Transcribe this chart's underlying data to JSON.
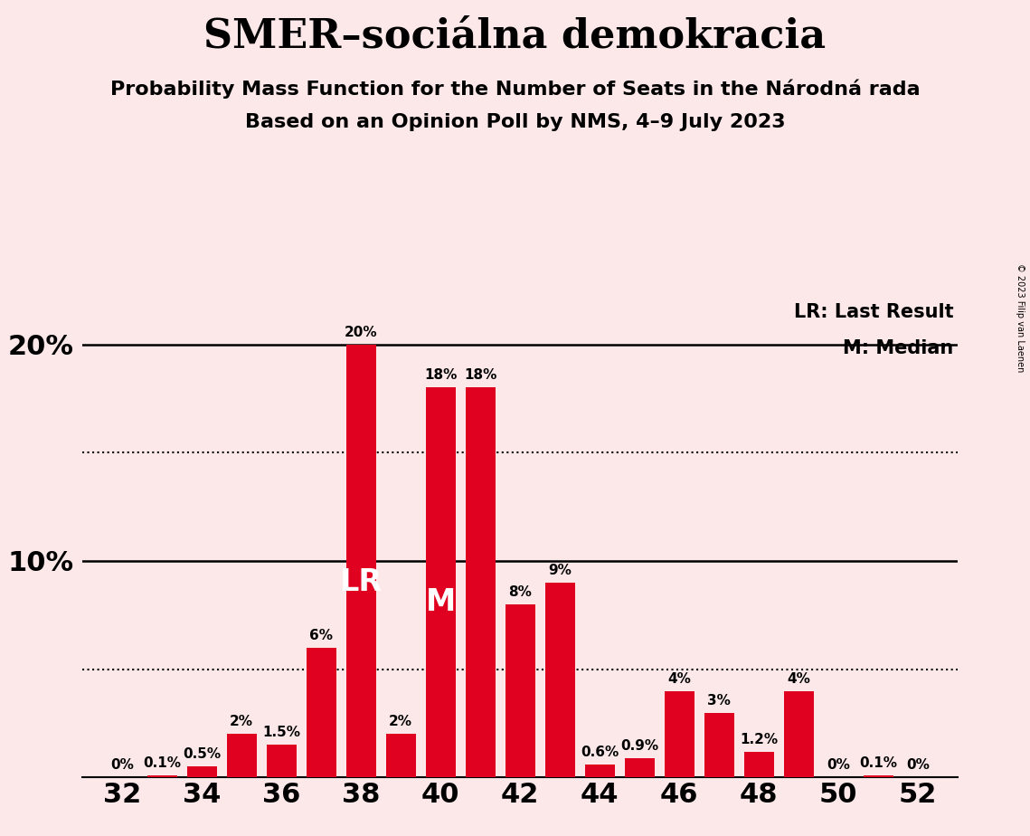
{
  "title": "SMER–sociálna demokracia",
  "subtitle1": "Probability Mass Function for the Number of Seats in the Národná rada",
  "subtitle2": "Based on an Opinion Poll by NMS, 4–9 July 2023",
  "copyright": "© 2023 Filip van Laenen",
  "background_color": "#fce8e8",
  "bar_color": "#e00020",
  "seats": [
    32,
    33,
    34,
    35,
    36,
    37,
    38,
    39,
    40,
    41,
    42,
    43,
    44,
    45,
    46,
    47,
    48,
    49,
    50,
    51,
    52
  ],
  "values": [
    0.0,
    0.1,
    0.5,
    2.0,
    1.5,
    6.0,
    20.0,
    2.0,
    18.0,
    18.0,
    8.0,
    9.0,
    0.6,
    0.9,
    4.0,
    3.0,
    1.2,
    4.0,
    0.0,
    0.1,
    0.0
  ],
  "labels": [
    "0%",
    "0.1%",
    "0.5%",
    "2%",
    "1.5%",
    "6%",
    "20%",
    "2%",
    "18%",
    "18%",
    "8%",
    "9%",
    "0.6%",
    "0.9%",
    "4%",
    "3%",
    "1.2%",
    "4%",
    "0%",
    "0.1%",
    "0%"
  ],
  "last_result_seat": 38,
  "median_seat": 40,
  "dotted_lines": [
    5.0,
    15.0
  ],
  "legend_lr": "LR: Last Result",
  "legend_m": "M: Median",
  "title_fontsize": 32,
  "subtitle_fontsize": 16,
  "label_fontsize": 11,
  "axis_tick_fontsize": 22,
  "legend_fontsize": 15,
  "marker_fontsize": 24,
  "ylim": [
    0,
    22
  ],
  "xlim": [
    31.0,
    53.0
  ]
}
